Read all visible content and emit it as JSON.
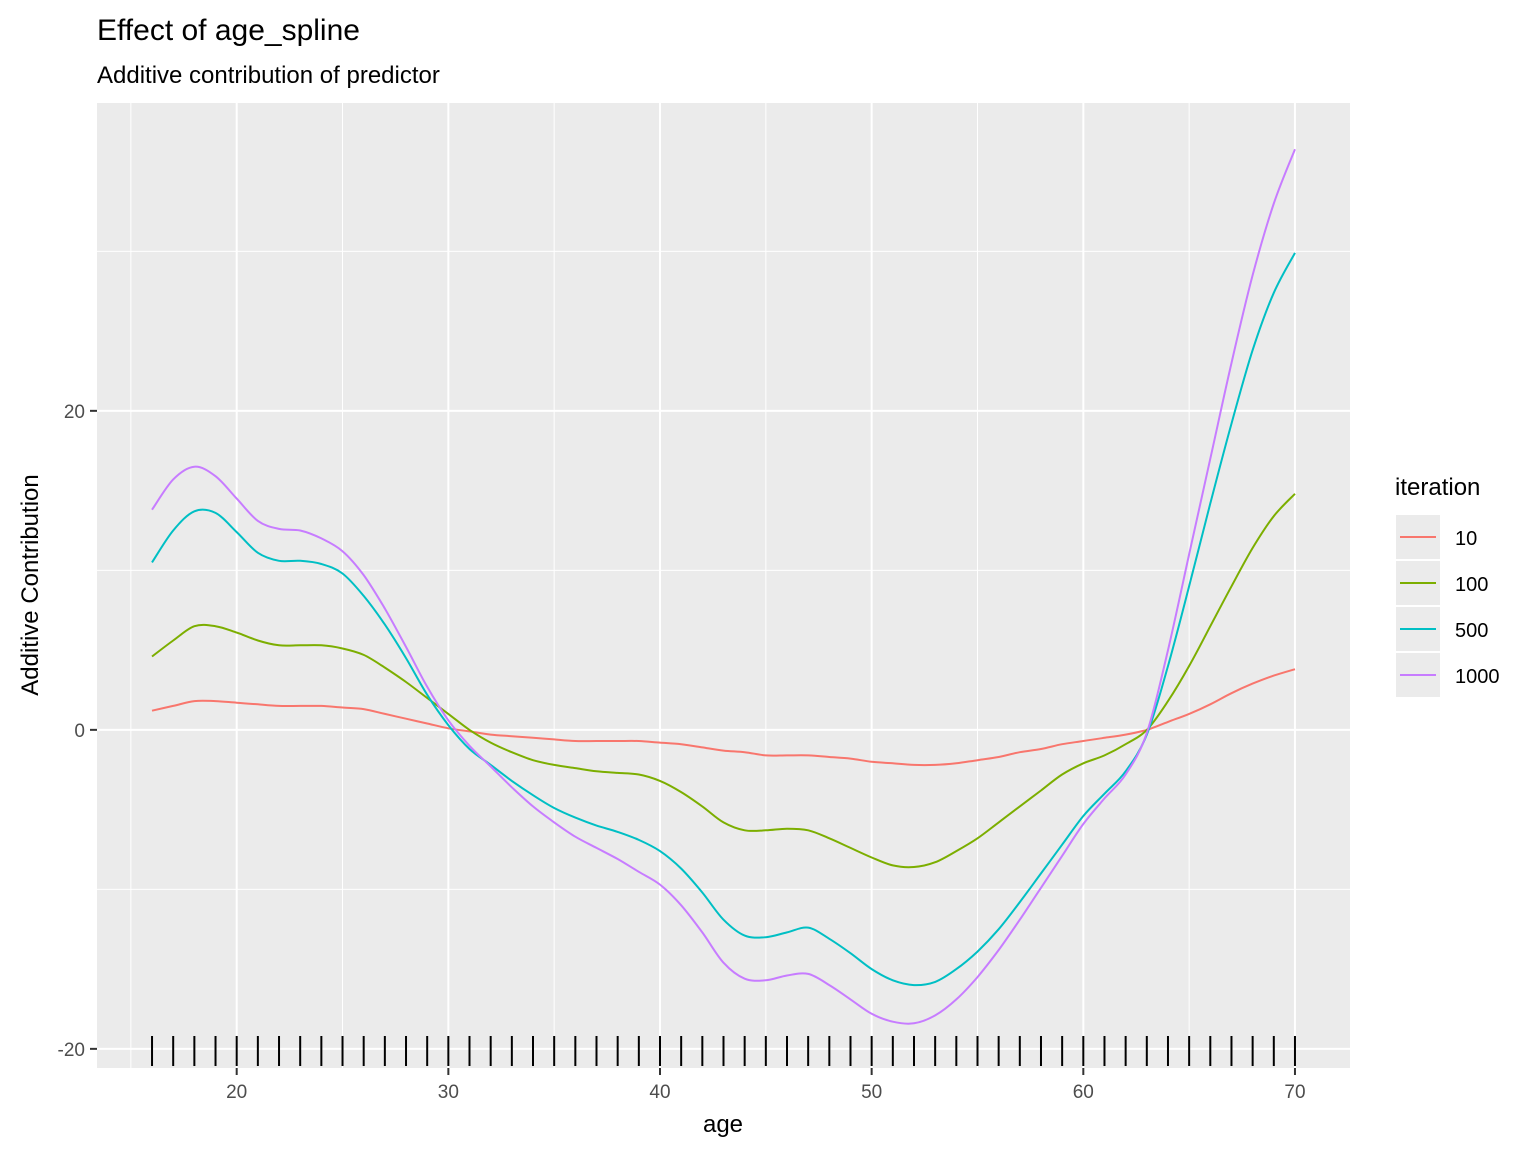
{
  "chart_data": {
    "type": "line",
    "title": "Effect of age_spline",
    "subtitle": "Additive contribution of predictor",
    "xlabel": "age",
    "ylabel": "Additive Contribution",
    "xlim": [
      13.4,
      72.6
    ],
    "ylim": [
      -21.2,
      39.3
    ],
    "x_ticks": [
      20,
      30,
      40,
      50,
      60,
      70
    ],
    "y_ticks": [
      -20,
      0,
      20
    ],
    "grid": true,
    "legend_title": "iteration",
    "legend_position": "right",
    "rug_x": [
      16,
      17,
      18,
      19,
      20,
      21,
      22,
      23,
      24,
      25,
      26,
      27,
      28,
      29,
      30,
      31,
      32,
      33,
      34,
      35,
      36,
      37,
      38,
      39,
      40,
      41,
      42,
      43,
      44,
      45,
      46,
      47,
      48,
      49,
      50,
      51,
      52,
      53,
      54,
      55,
      56,
      57,
      58,
      59,
      60,
      61,
      62,
      63,
      64,
      65,
      66,
      67,
      68,
      69,
      70
    ],
    "x": [
      16,
      17,
      18,
      19,
      20,
      21,
      22,
      23,
      24,
      25,
      26,
      27,
      28,
      29,
      30,
      31,
      32,
      33,
      34,
      35,
      36,
      37,
      38,
      39,
      40,
      41,
      42,
      43,
      44,
      45,
      46,
      47,
      48,
      49,
      50,
      51,
      52,
      53,
      54,
      55,
      56,
      57,
      58,
      59,
      60,
      61,
      62,
      63,
      64,
      65,
      66,
      67,
      68,
      69,
      70
    ],
    "series": [
      {
        "name": "10",
        "color": "#F8766D",
        "values": [
          1.2,
          1.5,
          1.8,
          1.8,
          1.7,
          1.6,
          1.5,
          1.5,
          1.5,
          1.4,
          1.3,
          1.0,
          0.7,
          0.4,
          0.1,
          -0.1,
          -0.3,
          -0.4,
          -0.5,
          -0.6,
          -0.7,
          -0.7,
          -0.7,
          -0.7,
          -0.8,
          -0.9,
          -1.1,
          -1.3,
          -1.4,
          -1.6,
          -1.6,
          -1.6,
          -1.7,
          -1.8,
          -2.0,
          -2.1,
          -2.2,
          -2.2,
          -2.1,
          -1.9,
          -1.7,
          -1.4,
          -1.2,
          -0.9,
          -0.7,
          -0.5,
          -0.3,
          0.0,
          0.5,
          1.0,
          1.6,
          2.3,
          2.9,
          3.4,
          3.8
        ]
      },
      {
        "name": "100",
        "color": "#7CAE00",
        "values": [
          4.6,
          5.6,
          6.5,
          6.5,
          6.1,
          5.6,
          5.3,
          5.3,
          5.3,
          5.1,
          4.7,
          3.9,
          3.0,
          2.0,
          1.0,
          0.0,
          -0.8,
          -1.4,
          -1.9,
          -2.2,
          -2.4,
          -2.6,
          -2.7,
          -2.8,
          -3.2,
          -3.9,
          -4.8,
          -5.8,
          -6.3,
          -6.3,
          -6.2,
          -6.3,
          -6.8,
          -7.4,
          -8.0,
          -8.5,
          -8.6,
          -8.3,
          -7.6,
          -6.8,
          -5.8,
          -4.8,
          -3.8,
          -2.8,
          -2.1,
          -1.6,
          -0.9,
          0.0,
          1.8,
          4.0,
          6.5,
          9.0,
          11.4,
          13.4,
          14.8
        ]
      },
      {
        "name": "500",
        "color": "#00BFC4",
        "values": [
          10.5,
          12.5,
          13.7,
          13.6,
          12.4,
          11.1,
          10.6,
          10.6,
          10.4,
          9.8,
          8.4,
          6.6,
          4.5,
          2.2,
          0.3,
          -1.2,
          -2.2,
          -3.2,
          -4.1,
          -4.9,
          -5.5,
          -6.0,
          -6.4,
          -6.9,
          -7.6,
          -8.7,
          -10.2,
          -11.9,
          -12.9,
          -13.0,
          -12.7,
          -12.4,
          -13.1,
          -14.0,
          -15.0,
          -15.7,
          -16.0,
          -15.8,
          -15.0,
          -13.9,
          -12.5,
          -10.8,
          -9.0,
          -7.2,
          -5.4,
          -4.0,
          -2.6,
          -0.3,
          4.0,
          9.0,
          14.2,
          19.2,
          23.8,
          27.4,
          29.9
        ]
      },
      {
        "name": "1000",
        "color": "#C77CFF",
        "values": [
          13.8,
          15.7,
          16.5,
          15.9,
          14.5,
          13.1,
          12.6,
          12.5,
          12.0,
          11.2,
          9.7,
          7.6,
          5.2,
          2.7,
          0.6,
          -1.0,
          -2.3,
          -3.6,
          -4.8,
          -5.8,
          -6.7,
          -7.4,
          -8.1,
          -8.9,
          -9.7,
          -11.0,
          -12.7,
          -14.6,
          -15.6,
          -15.7,
          -15.4,
          -15.3,
          -16.0,
          -16.9,
          -17.8,
          -18.3,
          -18.4,
          -17.9,
          -16.9,
          -15.5,
          -13.8,
          -11.9,
          -9.9,
          -7.9,
          -5.9,
          -4.3,
          -2.8,
          -0.2,
          5.0,
          11.0,
          17.0,
          23.0,
          28.5,
          33.0,
          36.4
        ]
      }
    ]
  }
}
